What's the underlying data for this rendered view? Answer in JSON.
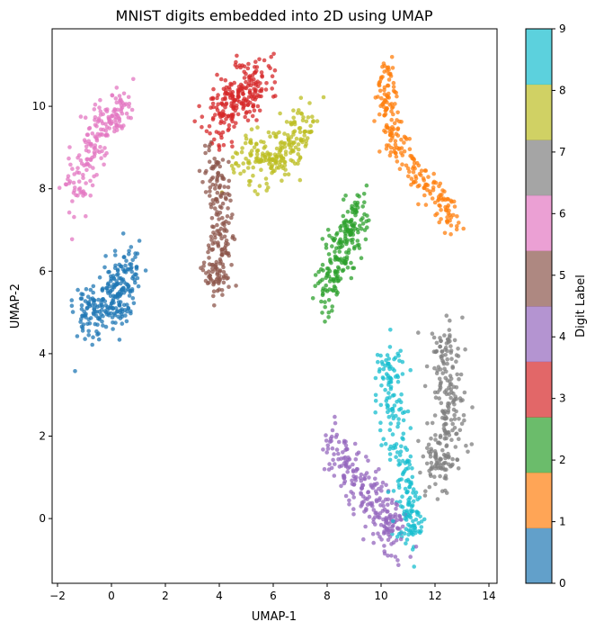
{
  "chart_data": {
    "type": "scatter",
    "title": "MNIST digits embedded into 2D using UMAP",
    "xlabel": "UMAP-1",
    "ylabel": "UMAP-2",
    "xlim": [
      -2.2,
      14.3
    ],
    "ylim": [
      -1.57,
      11.88
    ],
    "xticks": [
      -2,
      0,
      2,
      4,
      6,
      8,
      10,
      12,
      14
    ],
    "yticks": [
      0,
      2,
      4,
      6,
      8,
      10
    ],
    "grid": false,
    "colorbar": {
      "label": "Digit Label",
      "ticks": [
        0,
        1,
        2,
        3,
        4,
        5,
        6,
        7,
        8,
        9
      ],
      "alpha": 0.7
    },
    "clusters": [
      {
        "label": 0,
        "color": "#1f77b4",
        "count": 260,
        "spread": 0.33,
        "path": [
          [
            -1.2,
            4.9
          ],
          [
            -0.6,
            5.0
          ],
          [
            0.1,
            5.2
          ],
          [
            0.4,
            5.6
          ],
          [
            0.5,
            6.2
          ]
        ]
      },
      {
        "label": 1,
        "color": "#ff7f0e",
        "count": 230,
        "spread": 0.2,
        "path": [
          [
            10.1,
            11.0
          ],
          [
            10.3,
            10.2
          ],
          [
            10.3,
            9.5
          ],
          [
            10.6,
            9.0
          ],
          [
            11.2,
            8.4
          ],
          [
            11.8,
            8.0
          ],
          [
            12.4,
            7.6
          ],
          [
            12.8,
            7.1
          ]
        ]
      },
      {
        "label": 2,
        "color": "#2ca02c",
        "count": 210,
        "spread": 0.28,
        "path": [
          [
            7.9,
            5.4
          ],
          [
            8.3,
            6.1
          ],
          [
            8.8,
            6.8
          ],
          [
            9.1,
            7.6
          ]
        ]
      },
      {
        "label": 3,
        "color": "#d62728",
        "count": 230,
        "spread": 0.33,
        "path": [
          [
            3.8,
            9.6
          ],
          [
            4.4,
            10.2
          ],
          [
            5.1,
            10.4
          ],
          [
            5.6,
            10.6
          ]
        ]
      },
      {
        "label": 4,
        "color": "#9467bd",
        "count": 240,
        "spread": 0.3,
        "path": [
          [
            8.3,
            1.9
          ],
          [
            8.9,
            1.1
          ],
          [
            9.6,
            0.5
          ],
          [
            10.3,
            0.0
          ],
          [
            10.6,
            -0.7
          ]
        ]
      },
      {
        "label": 5,
        "color": "#8c564b",
        "count": 200,
        "spread": 0.25,
        "path": [
          [
            3.6,
            8.7
          ],
          [
            4.1,
            8.0
          ],
          [
            4.2,
            7.0
          ],
          [
            3.9,
            6.2
          ],
          [
            3.9,
            5.6
          ]
        ]
      },
      {
        "label": 6,
        "color": "#e377c2",
        "count": 190,
        "spread": 0.28,
        "path": [
          [
            -1.4,
            7.6
          ],
          [
            -1.0,
            8.5
          ],
          [
            -0.6,
            9.3
          ],
          [
            0.0,
            9.7
          ],
          [
            0.5,
            10.1
          ]
        ]
      },
      {
        "label": 7,
        "color": "#7f7f7f",
        "count": 240,
        "spread": 0.33,
        "path": [
          [
            12.4,
            4.5
          ],
          [
            12.3,
            3.5
          ],
          [
            12.6,
            2.5
          ],
          [
            12.3,
            1.5
          ],
          [
            11.8,
            1.1
          ]
        ]
      },
      {
        "label": 8,
        "color": "#bcbd22",
        "count": 220,
        "spread": 0.3,
        "path": [
          [
            4.6,
            8.4
          ],
          [
            5.5,
            8.9
          ],
          [
            6.2,
            8.7
          ],
          [
            6.8,
            9.2
          ],
          [
            7.3,
            9.7
          ]
        ]
      },
      {
        "label": 9,
        "color": "#17becf",
        "count": 230,
        "spread": 0.23,
        "path": [
          [
            10.4,
            4.0
          ],
          [
            10.4,
            3.0
          ],
          [
            10.5,
            2.0
          ],
          [
            10.9,
            1.0
          ],
          [
            11.1,
            0.0
          ],
          [
            11.2,
            -0.5
          ]
        ]
      }
    ]
  }
}
